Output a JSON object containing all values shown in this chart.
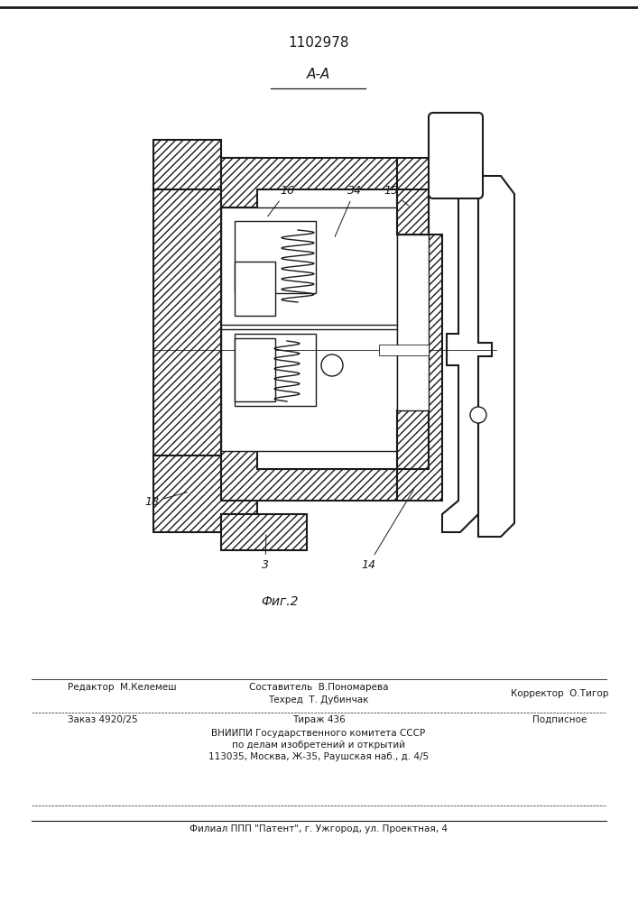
{
  "patent_number": "1102978",
  "section_label": "A-A",
  "bg_color": "#ffffff",
  "line_color": "#1a1a1a",
  "footer": {
    "col1_row1": "Редактор  М.Келемеш",
    "col2_row1a": "Составитель  В.Пономарева",
    "col2_row1b": "Техред  Т. Дубинчак",
    "col3_row1": "Корректор  О.Тигор",
    "col1_row2": "Заказ 4920/25",
    "col2_row2": "Тираж 436",
    "col3_row2": "Подписное",
    "row3": "ВНИИПИ Государственного комитета СССР",
    "row4": "по делам изобретений и открытий",
    "row5": "113035, Москва, Ж-35, Раушская наб., д. 4/5",
    "row6": "Филиал ППП \"Патент\", г. Ужгород, ул. Проектная, 4"
  }
}
